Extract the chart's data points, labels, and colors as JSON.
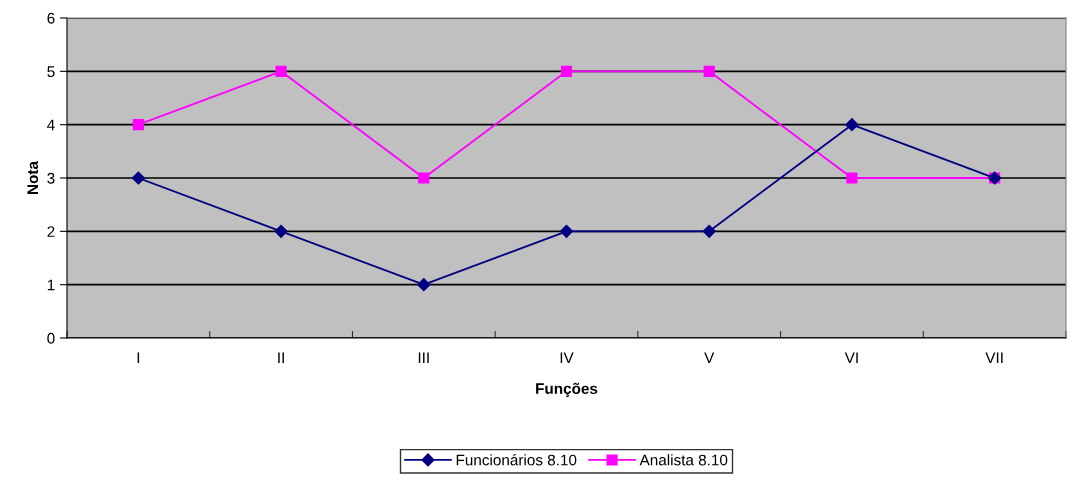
{
  "chart_data": {
    "type": "line",
    "xlabel": "Funções",
    "ylabel": "Nota",
    "categories": [
      "I",
      "II",
      "III",
      "IV",
      "V",
      "VI",
      "VII"
    ],
    "series": [
      {
        "name": "Funcionários 8.10",
        "color": "#000080",
        "marker": "diamond",
        "values": [
          3,
          2,
          1,
          2,
          2,
          4,
          3
        ]
      },
      {
        "name": "Analista 8.10",
        "color": "#ff00ff",
        "marker": "square",
        "values": [
          4,
          5,
          3,
          5,
          5,
          3,
          3
        ]
      }
    ],
    "ylim": [
      0,
      6
    ],
    "yticks": [
      0,
      1,
      2,
      3,
      4,
      5,
      6
    ],
    "grid": "y",
    "legend": "bottom"
  }
}
